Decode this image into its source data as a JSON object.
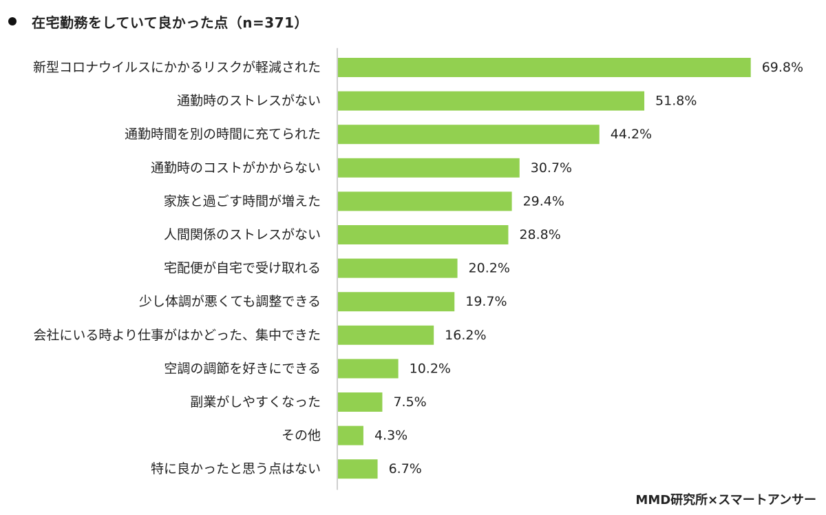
{
  "title": "在宅勤務をしていて良かった点（n=371）",
  "source": "MMD研究所×スマートアンサー",
  "colors": {
    "bar": "#92d050",
    "axis": "#bfbfbf",
    "text": "#222222"
  },
  "chart_data": {
    "type": "bar",
    "orientation": "horizontal",
    "title": "在宅勤務をしていて良かった点（n=371）",
    "unit": "%",
    "xlim": [
      0,
      100
    ],
    "grid": false,
    "legend": "none",
    "categories": [
      "新型コロナウイルスにかかるリスクが軽減された",
      "通勤時のストレスがない",
      "通勤時間を別の時間に充てられた",
      "通勤時のコストがかからない",
      "家族と過ごす時間が増えた",
      "人間関係のストレスがない",
      "宅配便が自宅で受け取れる",
      "少し体調が悪くても調整できる",
      "会社にいる時より仕事がはかどった、集中できた",
      "空調の調節を好きにできる",
      "副業がしやすくなった",
      "その他",
      "特に良かったと思う点はない"
    ],
    "values": [
      69.8,
      51.8,
      44.2,
      30.7,
      29.4,
      28.8,
      20.2,
      19.7,
      16.2,
      10.2,
      7.5,
      4.3,
      6.7
    ],
    "value_labels": [
      "69.8%",
      "51.8%",
      "44.2%",
      "30.7%",
      "29.4%",
      "28.8%",
      "20.2%",
      "19.7%",
      "16.2%",
      "10.2%",
      "7.5%",
      "4.3%",
      "6.7%"
    ]
  }
}
